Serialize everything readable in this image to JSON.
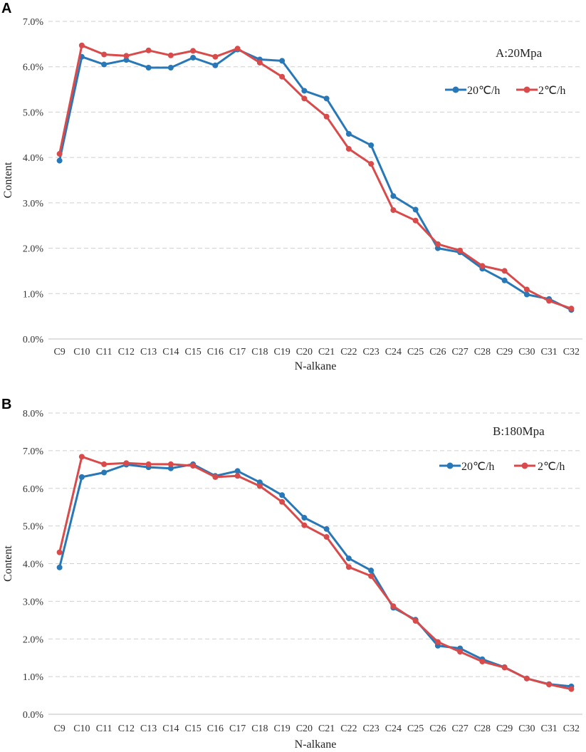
{
  "chart_data": [
    {
      "panel": "A",
      "type": "line",
      "annotation": "A:20Mpa",
      "xlabel": "N-alkane",
      "ylabel": "Content",
      "ylim": [
        0,
        7
      ],
      "yticks": [
        "0.0%",
        "1.0%",
        "2.0%",
        "3.0%",
        "4.0%",
        "5.0%",
        "6.0%",
        "7.0%"
      ],
      "legend_position": "top-right",
      "categories": [
        "C9",
        "C10",
        "C11",
        "C12",
        "C13",
        "C14",
        "C15",
        "C16",
        "C17",
        "C18",
        "C19",
        "C20",
        "C21",
        "C22",
        "C23",
        "C24",
        "C25",
        "C26",
        "C27",
        "C28",
        "C29",
        "C30",
        "C31",
        "C32"
      ],
      "series": [
        {
          "name": "20℃/h",
          "color": "#2878b8",
          "values": [
            3.93,
            6.22,
            6.05,
            6.15,
            5.98,
            5.98,
            6.2,
            6.03,
            6.38,
            6.16,
            6.13,
            5.47,
            5.3,
            4.52,
            4.27,
            3.15,
            2.85,
            2.0,
            1.91,
            1.55,
            1.29,
            0.98,
            0.88,
            0.64
          ]
        },
        {
          "name": "2℃/h",
          "color": "#d94a4a",
          "values": [
            4.08,
            6.47,
            6.27,
            6.24,
            6.36,
            6.25,
            6.35,
            6.22,
            6.4,
            6.09,
            5.78,
            5.3,
            4.9,
            4.19,
            3.86,
            2.84,
            2.61,
            2.09,
            1.95,
            1.61,
            1.5,
            1.09,
            0.84,
            0.67
          ]
        }
      ]
    },
    {
      "panel": "B",
      "type": "line",
      "annotation": "B:180Mpa",
      "xlabel": "N-alkane",
      "ylabel": "Content",
      "ylim": [
        0,
        8
      ],
      "yticks": [
        "0.0%",
        "1.0%",
        "2.0%",
        "3.0%",
        "4.0%",
        "5.0%",
        "6.0%",
        "7.0%",
        "8.0%"
      ],
      "legend_position": "top-right",
      "categories": [
        "C9",
        "C10",
        "C11",
        "C12",
        "C13",
        "C14",
        "C15",
        "C16",
        "C17",
        "C18",
        "C19",
        "C20",
        "C21",
        "C22",
        "C23",
        "C24",
        "C25",
        "C26",
        "C27",
        "C28",
        "C29",
        "C30",
        "C31",
        "C32"
      ],
      "series": [
        {
          "name": "20℃/h",
          "color": "#2878b8",
          "values": [
            3.9,
            6.3,
            6.42,
            6.63,
            6.56,
            6.53,
            6.64,
            6.33,
            6.46,
            6.16,
            5.82,
            5.22,
            4.92,
            4.14,
            3.82,
            2.83,
            2.51,
            1.82,
            1.75,
            1.46,
            1.25,
            0.95,
            0.8,
            0.74
          ]
        },
        {
          "name": "2℃/h",
          "color": "#d94a4a",
          "values": [
            4.3,
            6.84,
            6.64,
            6.67,
            6.64,
            6.64,
            6.6,
            6.3,
            6.33,
            6.06,
            5.64,
            5.02,
            4.71,
            3.91,
            3.67,
            2.87,
            2.48,
            1.92,
            1.66,
            1.4,
            1.24,
            0.95,
            0.79,
            0.67
          ]
        }
      ]
    }
  ]
}
